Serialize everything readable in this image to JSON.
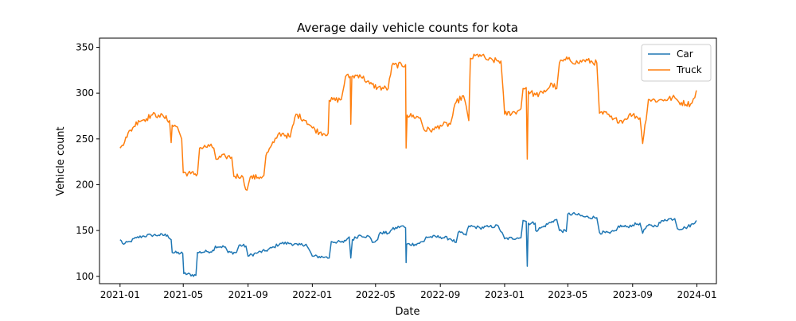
{
  "chart_data": {
    "type": "line",
    "title": "Average daily vehicle counts for kota",
    "xlabel": "Date",
    "ylabel": "Vehicle count",
    "xlim": [
      "2020-11-23",
      "2024-02-07"
    ],
    "ylim": [
      92,
      360
    ],
    "x_ticks": [
      "2021-01-01",
      "2021-05-01",
      "2021-09-01",
      "2022-01-01",
      "2022-05-01",
      "2022-09-01",
      "2023-01-01",
      "2023-05-01",
      "2023-09-01",
      "2024-01-01"
    ],
    "x_tick_labels": [
      "2021-01",
      "2021-05",
      "2021-09",
      "2022-01",
      "2022-05",
      "2022-09",
      "2023-01",
      "2023-05",
      "2023-09",
      "2024-01"
    ],
    "y_ticks": [
      100,
      150,
      200,
      250,
      300,
      350
    ],
    "y_tick_labels": [
      "100",
      "150",
      "200",
      "250",
      "300",
      "350"
    ],
    "grid": false,
    "legend": "top-right",
    "series": [
      {
        "name": "Car",
        "color": "#1f77b4",
        "points": [
          [
            "2021-01-01",
            140
          ],
          [
            "2021-01-08",
            135
          ],
          [
            "2021-01-20",
            138
          ],
          [
            "2021-02-01",
            142
          ],
          [
            "2021-02-15",
            144
          ],
          [
            "2021-03-01",
            145
          ],
          [
            "2021-03-15",
            145
          ],
          [
            "2021-04-01",
            145
          ],
          [
            "2021-04-08",
            140
          ],
          [
            "2021-04-10",
            126
          ],
          [
            "2021-04-30",
            125
          ],
          [
            "2021-05-02",
            103
          ],
          [
            "2021-05-25",
            101
          ],
          [
            "2021-05-28",
            126
          ],
          [
            "2021-06-15",
            127
          ],
          [
            "2021-06-28",
            128
          ],
          [
            "2021-07-01",
            133
          ],
          [
            "2021-07-20",
            132
          ],
          [
            "2021-07-25",
            126
          ],
          [
            "2021-08-10",
            126
          ],
          [
            "2021-08-15",
            134
          ],
          [
            "2021-08-28",
            133
          ],
          [
            "2021-09-01",
            122
          ],
          [
            "2021-09-20",
            126
          ],
          [
            "2021-10-05",
            128
          ],
          [
            "2021-10-20",
            132
          ],
          [
            "2021-11-01",
            136
          ],
          [
            "2021-11-20",
            136
          ],
          [
            "2021-12-05",
            134
          ],
          [
            "2021-12-20",
            135
          ],
          [
            "2022-01-01",
            122
          ],
          [
            "2022-01-25",
            121
          ],
          [
            "2022-02-02",
            120
          ],
          [
            "2022-02-06",
            138
          ],
          [
            "2022-03-01",
            137
          ],
          [
            "2022-03-12",
            143
          ],
          [
            "2022-03-15",
            120
          ],
          [
            "2022-03-18",
            140
          ],
          [
            "2022-04-01",
            145
          ],
          [
            "2022-04-20",
            143
          ],
          [
            "2022-04-25",
            137
          ],
          [
            "2022-05-05",
            140
          ],
          [
            "2022-05-10",
            148
          ],
          [
            "2022-05-25",
            147
          ],
          [
            "2022-06-01",
            151
          ],
          [
            "2022-06-20",
            155
          ],
          [
            "2022-06-27",
            153
          ],
          [
            "2022-06-28",
            115
          ],
          [
            "2022-06-29",
            135
          ],
          [
            "2022-07-15",
            135
          ],
          [
            "2022-08-01",
            138
          ],
          [
            "2022-08-05",
            143
          ],
          [
            "2022-09-01",
            143
          ],
          [
            "2022-09-20",
            141
          ],
          [
            "2022-10-01",
            137
          ],
          [
            "2022-10-05",
            148
          ],
          [
            "2022-10-20",
            145
          ],
          [
            "2022-10-25",
            155
          ],
          [
            "2022-11-15",
            153
          ],
          [
            "2022-12-01",
            154
          ],
          [
            "2022-12-20",
            155
          ],
          [
            "2023-01-01",
            141
          ],
          [
            "2023-01-25",
            142
          ],
          [
            "2023-02-01",
            142
          ],
          [
            "2023-02-05",
            161
          ],
          [
            "2023-02-11",
            160
          ],
          [
            "2023-02-13",
            111
          ],
          [
            "2023-02-15",
            158
          ],
          [
            "2023-02-28",
            158
          ],
          [
            "2023-03-01",
            150
          ],
          [
            "2023-03-15",
            154
          ],
          [
            "2023-04-01",
            160
          ],
          [
            "2023-04-10",
            162
          ],
          [
            "2023-04-15",
            150
          ],
          [
            "2023-04-28",
            149
          ],
          [
            "2023-05-01",
            168
          ],
          [
            "2023-05-15",
            168
          ],
          [
            "2023-06-01",
            165
          ],
          [
            "2023-06-25",
            164
          ],
          [
            "2023-06-30",
            148
          ],
          [
            "2023-07-20",
            147
          ],
          [
            "2023-08-01",
            150
          ],
          [
            "2023-08-05",
            155
          ],
          [
            "2023-08-20",
            154
          ],
          [
            "2023-09-01",
            156
          ],
          [
            "2023-09-15",
            158
          ],
          [
            "2023-09-20",
            147
          ],
          [
            "2023-09-28",
            155
          ],
          [
            "2023-10-15",
            155
          ],
          [
            "2023-11-01",
            162
          ],
          [
            "2023-11-20",
            163
          ],
          [
            "2023-11-25",
            152
          ],
          [
            "2023-12-10",
            153
          ],
          [
            "2023-12-28",
            158
          ],
          [
            "2023-12-31",
            161
          ]
        ]
      },
      {
        "name": "Truck",
        "color": "#ff7f0e",
        "points": [
          [
            "2021-01-01",
            240
          ],
          [
            "2021-01-05",
            243
          ],
          [
            "2021-01-12",
            252
          ],
          [
            "2021-01-25",
            262
          ],
          [
            "2021-02-05",
            270
          ],
          [
            "2021-02-20",
            272
          ],
          [
            "2021-03-01",
            276
          ],
          [
            "2021-03-15",
            276
          ],
          [
            "2021-03-25",
            274
          ],
          [
            "2021-04-05",
            270
          ],
          [
            "2021-04-08",
            246
          ],
          [
            "2021-04-10",
            265
          ],
          [
            "2021-04-20",
            263
          ],
          [
            "2021-04-28",
            250
          ],
          [
            "2021-05-01",
            213
          ],
          [
            "2021-05-15",
            212
          ],
          [
            "2021-05-28",
            212
          ],
          [
            "2021-06-01",
            240
          ],
          [
            "2021-06-20",
            242
          ],
          [
            "2021-06-28",
            240
          ],
          [
            "2021-07-02",
            228
          ],
          [
            "2021-07-20",
            231
          ],
          [
            "2021-08-01",
            230
          ],
          [
            "2021-08-05",
            209
          ],
          [
            "2021-08-20",
            210
          ],
          [
            "2021-08-30",
            194
          ],
          [
            "2021-09-05",
            208
          ],
          [
            "2021-09-20",
            208
          ],
          [
            "2021-10-01",
            210
          ],
          [
            "2021-10-05",
            232
          ],
          [
            "2021-10-20",
            246
          ],
          [
            "2021-10-28",
            255
          ],
          [
            "2021-11-05",
            256
          ],
          [
            "2021-11-20",
            252
          ],
          [
            "2021-12-01",
            277
          ],
          [
            "2021-12-20",
            270
          ],
          [
            "2022-01-01",
            262
          ],
          [
            "2022-01-15",
            257
          ],
          [
            "2022-01-31",
            256
          ],
          [
            "2022-02-02",
            292
          ],
          [
            "2022-02-25",
            293
          ],
          [
            "2022-03-05",
            318
          ],
          [
            "2022-03-14",
            318
          ],
          [
            "2022-03-15",
            266
          ],
          [
            "2022-03-17",
            318
          ],
          [
            "2022-04-01",
            320
          ],
          [
            "2022-04-20",
            310
          ],
          [
            "2022-05-05",
            306
          ],
          [
            "2022-05-25",
            305
          ],
          [
            "2022-06-01",
            330
          ],
          [
            "2022-06-27",
            331
          ],
          [
            "2022-06-28",
            240
          ],
          [
            "2022-06-30",
            276
          ],
          [
            "2022-07-25",
            273
          ],
          [
            "2022-08-01",
            260
          ],
          [
            "2022-08-20",
            260
          ],
          [
            "2022-09-01",
            265
          ],
          [
            "2022-09-20",
            266
          ],
          [
            "2022-10-01",
            290
          ],
          [
            "2022-10-15",
            297
          ],
          [
            "2022-10-25",
            270
          ],
          [
            "2022-10-28",
            338
          ],
          [
            "2022-11-15",
            342
          ],
          [
            "2022-12-01",
            336
          ],
          [
            "2022-12-25",
            335
          ],
          [
            "2023-01-01",
            277
          ],
          [
            "2023-01-25",
            280
          ],
          [
            "2023-02-01",
            283
          ],
          [
            "2023-02-05",
            305
          ],
          [
            "2023-02-11",
            306
          ],
          [
            "2023-02-13",
            228
          ],
          [
            "2023-02-15",
            302
          ],
          [
            "2023-03-01",
            298
          ],
          [
            "2023-03-15",
            300
          ],
          [
            "2023-04-01",
            310
          ],
          [
            "2023-04-10",
            305
          ],
          [
            "2023-04-15",
            333
          ],
          [
            "2023-05-01",
            337
          ],
          [
            "2023-05-20",
            333
          ],
          [
            "2023-06-01",
            336
          ],
          [
            "2023-06-25",
            333
          ],
          [
            "2023-06-30",
            278
          ],
          [
            "2023-07-15",
            277
          ],
          [
            "2023-07-25",
            271
          ],
          [
            "2023-08-15",
            270
          ],
          [
            "2023-08-25",
            276
          ],
          [
            "2023-09-01",
            276
          ],
          [
            "2023-09-15",
            273
          ],
          [
            "2023-09-20",
            245
          ],
          [
            "2023-10-01",
            293
          ],
          [
            "2023-10-20",
            292
          ],
          [
            "2023-11-01",
            293
          ],
          [
            "2023-11-20",
            295
          ],
          [
            "2023-11-28",
            290
          ],
          [
            "2023-12-20",
            288
          ],
          [
            "2023-12-28",
            295
          ],
          [
            "2023-12-31",
            303
          ]
        ]
      }
    ]
  }
}
